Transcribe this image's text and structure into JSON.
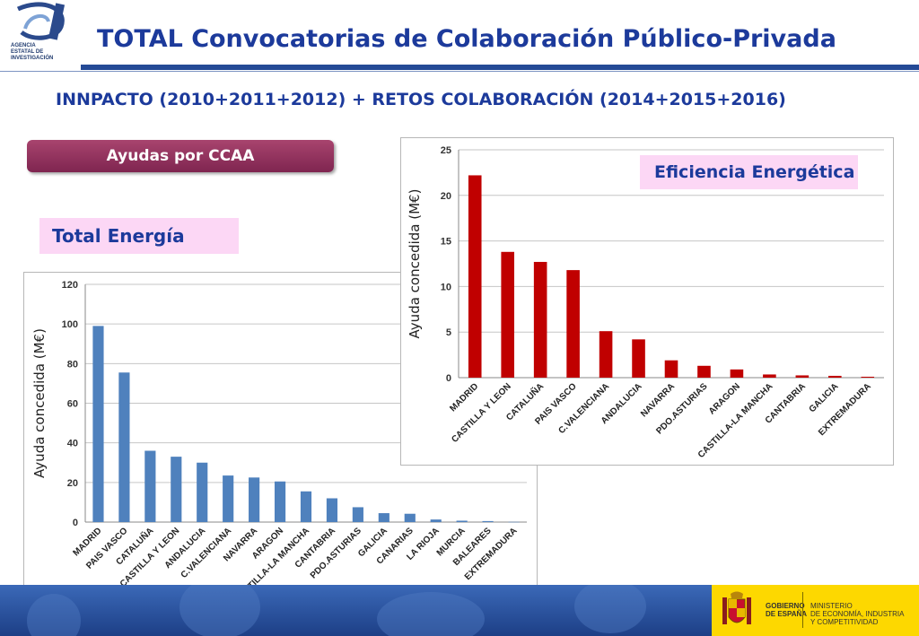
{
  "header": {
    "logo_lines": [
      "AGENCIA",
      "ESTATAL DE",
      "INVESTIGACIÓN"
    ],
    "title": "TOTAL Convocatorias de Colaboración Público-Privada",
    "subtitle": "INNPACTO (2010+2011+2012) + RETOS COLABORACIÓN (2014+2015+2016)"
  },
  "badge": {
    "label": "Ayudas por CCAA"
  },
  "labels": {
    "total": "Total Energía",
    "efficiency": "Eficiencia Energética"
  },
  "colors": {
    "bar_blue": "#4f81bd",
    "bar_red": "#c00000",
    "title_blue": "#1c3a9b",
    "badge_purple": "#8e3260",
    "label_pink": "#fcd7f5",
    "footer_yellow": "#fdd800"
  },
  "chart_data": [
    {
      "type": "bar",
      "categories": [
        "MADRID",
        "PAIS VASCO",
        "CATALUÑA",
        "CASTILLA Y LEON",
        "ANDALUCIA",
        "C.VALENCIANA",
        "NAVARRA",
        "ARAGON",
        "CASTILLA-LA MANCHA",
        "CANTABRIA",
        "PDO.ASTURIAS",
        "GALICIA",
        "CANARIAS",
        "LA RIOJA",
        "MURCIA",
        "BALEARES",
        "EXTREMADURA"
      ],
      "values": [
        99,
        75.5,
        36,
        33,
        30,
        23.5,
        22.5,
        20.5,
        15.5,
        12,
        7.5,
        4.5,
        4.2,
        1.3,
        0.7,
        0.5,
        0.1
      ],
      "xlabel": "",
      "ylabel": "Ayuda concedida (M€)",
      "ylim": [
        0,
        120
      ],
      "yticks": [
        0,
        20,
        40,
        60,
        80,
        100,
        120
      ],
      "grid": true,
      "color": "#4f81bd"
    },
    {
      "type": "bar",
      "categories": [
        "MADRID",
        "CASTILLA Y LEON",
        "CATALUÑA",
        "PAIS VASCO",
        "C.VALENCIANA",
        "ANDALUCIA",
        "NAVARRA",
        "PDO.ASTURIAS",
        "ARAGON",
        "CASTILLA-LA MANCHA",
        "CANTABRIA",
        "GALICIA",
        "EXTREMADURA"
      ],
      "values": [
        22.2,
        13.8,
        12.7,
        11.8,
        5.1,
        4.2,
        1.9,
        1.3,
        0.9,
        0.35,
        0.25,
        0.2,
        0.1
      ],
      "xlabel": "",
      "ylabel": "Ayuda concedida (M€)",
      "ylim": [
        0,
        25
      ],
      "yticks": [
        0,
        5,
        10,
        15,
        20,
        25
      ],
      "grid": true,
      "color": "#c00000"
    }
  ],
  "footer": {
    "gov_label": "GOBIERNO\nDE ESPAÑA",
    "ministry_label": "MINISTERIO\nDE ECONOMÍA, INDUSTRIA\nY COMPETITIVIDAD",
    "emblem_icon": "spain-coat-of-arms-icon"
  }
}
